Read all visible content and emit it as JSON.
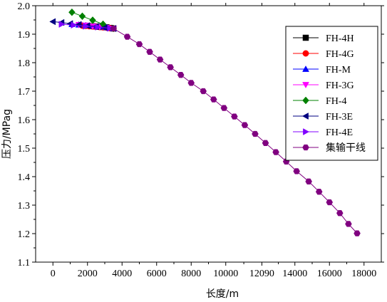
{
  "chart_data": {
    "type": "line",
    "xlabel": "长度/m",
    "ylabel": "压力/MPag",
    "xlim": [
      -1000,
      19000
    ],
    "ylim": [
      1.1,
      2.0
    ],
    "x_ticks": [
      0,
      2000,
      4000,
      6000,
      8000,
      10000,
      12090,
      14000,
      16000,
      18000
    ],
    "y_ticks": [
      1.1,
      1.2,
      1.3,
      1.4,
      1.5,
      1.6,
      1.7,
      1.8,
      1.9,
      2.0
    ],
    "x_tick_labels": [
      "0",
      "2000",
      "4000",
      "6000",
      "8000",
      "10000",
      "12090",
      "14000",
      "16000",
      "18000"
    ],
    "y_tick_labels": [
      "1.1",
      "1.2",
      "1.3",
      "1.4",
      "1.5",
      "1.6",
      "1.7",
      "1.8",
      "1.9",
      "2.0"
    ],
    "grid": false,
    "legend_position": "top-right",
    "series": [
      {
        "name": "FH-4H",
        "color": "#000000",
        "marker": "square",
        "x": [
          2300,
          2500,
          2700,
          2900,
          3100,
          3300,
          3500
        ],
        "y": [
          1.928,
          1.927,
          1.926,
          1.925,
          1.924,
          1.922,
          1.92
        ]
      },
      {
        "name": "FH-4G",
        "color": "#ff0000",
        "marker": "circle",
        "x": [
          1700,
          1900,
          2100,
          2300,
          2500,
          2700,
          2900,
          3100,
          3300,
          3500
        ],
        "y": [
          1.93,
          1.929,
          1.928,
          1.927,
          1.926,
          1.925,
          1.924,
          1.923,
          1.921,
          1.92
        ]
      },
      {
        "name": "FH-M",
        "color": "#0000ff",
        "marker": "triangle-up",
        "x": [
          1100,
          1500,
          1900,
          2300,
          2700,
          3100,
          3500
        ],
        "y": [
          1.935,
          1.933,
          1.931,
          1.929,
          1.926,
          1.924,
          1.92
        ]
      },
      {
        "name": "FH-3G",
        "color": "#ff00ff",
        "marker": "triangle-down",
        "x": [
          1500,
          1900,
          2300,
          2700,
          3100,
          3500
        ],
        "y": [
          1.933,
          1.931,
          1.928,
          1.926,
          1.923,
          1.92
        ]
      },
      {
        "name": "FH-4",
        "color": "#008000",
        "marker": "diamond",
        "x": [
          1100,
          1700,
          2300,
          2900,
          3500
        ],
        "y": [
          1.977,
          1.963,
          1.949,
          1.935,
          1.92
        ]
      },
      {
        "name": "FH-3E",
        "color": "#000080",
        "marker": "triangle-left",
        "x": [
          0,
          500,
          1000,
          1500,
          2000,
          2500,
          3000,
          3500
        ],
        "y": [
          1.944,
          1.941,
          1.937,
          1.934,
          1.93,
          1.927,
          1.923,
          1.92
        ]
      },
      {
        "name": "FH-4E",
        "color": "#8000ff",
        "marker": "triangle-right",
        "x": [
          500,
          1200,
          1900,
          2600,
          3300
        ],
        "y": [
          1.935,
          1.932,
          1.928,
          1.925,
          1.921
        ]
      },
      {
        "name": "集输干线",
        "color": "#800080",
        "marker": "hexagon",
        "x": [
          3500,
          4300,
          5000,
          5600,
          6200,
          6800,
          7400,
          8000,
          8700,
          9300,
          9900,
          10500,
          11100,
          11700,
          12300,
          12900,
          13500,
          14100,
          14800,
          15400,
          16000,
          16600,
          17100,
          17600
        ],
        "y": [
          1.92,
          1.891,
          1.865,
          1.838,
          1.811,
          1.784,
          1.757,
          1.729,
          1.7,
          1.671,
          1.641,
          1.611,
          1.581,
          1.55,
          1.518,
          1.486,
          1.453,
          1.419,
          1.383,
          1.347,
          1.31,
          1.272,
          1.234,
          1.201
        ]
      }
    ]
  }
}
